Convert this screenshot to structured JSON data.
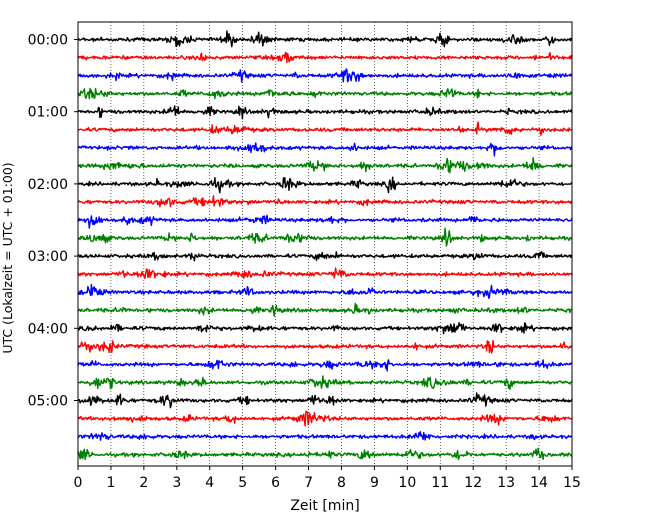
{
  "chart_data": {
    "type": "line",
    "subtype": "helicorder-seismogram",
    "title": "",
    "xlabel": "Zeit  [min]",
    "ylabel": "UTC (Lokalzeit = UTC + 01:00)",
    "xlim": [
      0,
      15
    ],
    "x_ticks": [
      "0",
      "1",
      "2",
      "3",
      "4",
      "5",
      "6",
      "7",
      "8",
      "9",
      "10",
      "11",
      "12",
      "13",
      "14",
      "15"
    ],
    "y_ticks": [
      "00:00",
      "01:00",
      "02:00",
      "03:00",
      "04:00",
      "05:00"
    ],
    "row_interval_minutes": 15,
    "row_count": 24,
    "grid": {
      "x": true,
      "style": "dotted"
    },
    "colors": [
      "#000000",
      "#ff0000",
      "#0000ff",
      "#008000"
    ],
    "notable_events": [
      {
        "row": 0,
        "minute": 14.3
      },
      {
        "row": 3,
        "minute": 5.8
      },
      {
        "row": 8,
        "minute": 6.3
      },
      {
        "row": 8,
        "minute": 9.5
      },
      {
        "row": 11,
        "minute": 11.2
      },
      {
        "row": 17,
        "minute": 12.5
      }
    ]
  }
}
